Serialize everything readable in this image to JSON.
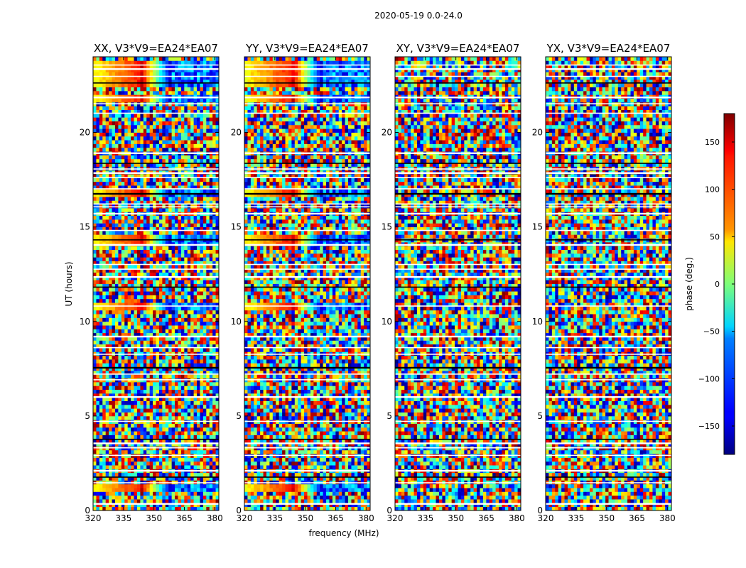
{
  "figure": {
    "suptitle": "2020-05-19 0.0-24.0",
    "xlabel": "frequency (MHz)",
    "ylabel": "UT (hours)"
  },
  "chart_data": {
    "type": "heatmap",
    "panels": [
      {
        "title": "XX, V3*V9=EA24*EA07",
        "pol": "XX",
        "coherent": true
      },
      {
        "title": "YY, V3*V9=EA24*EA07",
        "pol": "YY",
        "coherent": true
      },
      {
        "title": "XY, V3*V9=EA24*EA07",
        "pol": "XY",
        "coherent": false
      },
      {
        "title": "YX, V3*V9=EA24*EA07",
        "pol": "YX",
        "coherent": false
      }
    ],
    "x": {
      "label": "frequency (MHz)",
      "range": [
        320,
        382
      ],
      "ticks": [
        320,
        335,
        350,
        365,
        380
      ]
    },
    "y": {
      "label": "UT (hours)",
      "range": [
        0,
        24
      ],
      "ticks": [
        0,
        5,
        10,
        15,
        20
      ]
    },
    "colorbar": {
      "label": "phase (deg.)",
      "range": [
        -180,
        180
      ],
      "ticks": [
        -150,
        -100,
        -50,
        0,
        50,
        100,
        150
      ],
      "colormap": "jet"
    },
    "coherent_bands_ut": [
      [
        0.9,
        1.3
      ],
      [
        10.7,
        11.1
      ],
      [
        14.0,
        14.6
      ],
      [
        16.7,
        17.0
      ],
      [
        21.7,
        22.0
      ],
      [
        22.5,
        23.8
      ]
    ],
    "flagged_rows_ut": [
      0.35,
      1.45,
      1.75,
      2.1,
      2.9,
      3.3,
      3.55,
      3.75,
      4.7,
      6.0,
      6.9,
      7.2,
      7.55,
      8.25,
      8.6,
      9.2,
      10.8,
      11.8,
      12.35,
      12.75,
      13.0,
      14.05,
      14.3,
      14.8,
      15.7,
      16.05,
      16.2,
      16.75,
      17.0,
      17.6,
      17.85,
      18.05,
      18.35,
      18.9,
      21.0,
      21.5,
      21.85,
      22.6,
      22.95,
      23.35,
      23.55
    ]
  }
}
